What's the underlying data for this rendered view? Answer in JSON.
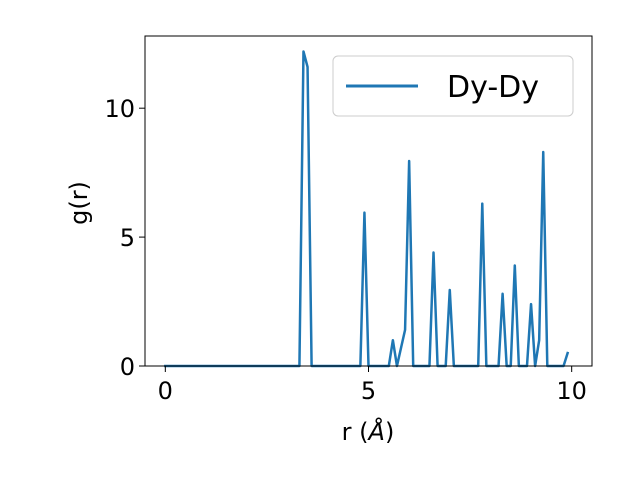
{
  "chart_data": {
    "type": "line",
    "xlabel_prefix": "r (",
    "xlabel_unit": "Å",
    "xlabel_suffix": ")",
    "ylabel": "g(r)",
    "xlim": [
      -0.5,
      10.5
    ],
    "ylim": [
      0,
      12.8
    ],
    "xticks": [
      0,
      5,
      10
    ],
    "yticks": [
      0,
      5,
      10
    ],
    "grid": false,
    "legend_position": "top-right",
    "colors": {
      "series": "#1f77b4"
    },
    "series": [
      {
        "name": "Dy-Dy",
        "x": [
          0.0,
          3.3,
          3.4,
          3.5,
          3.6,
          4.8,
          4.9,
          5.0,
          5.5,
          5.6,
          5.7,
          5.9,
          6.0,
          6.1,
          6.5,
          6.6,
          6.7,
          6.9,
          7.0,
          7.1,
          7.7,
          7.8,
          7.9,
          8.2,
          8.3,
          8.4,
          8.5,
          8.6,
          8.7,
          8.9,
          9.0,
          9.1,
          9.2,
          9.3,
          9.4,
          9.8,
          9.9
        ],
        "y": [
          0.0,
          0.0,
          12.2,
          11.6,
          0.0,
          0.0,
          5.95,
          0.0,
          0.0,
          1.0,
          0.0,
          1.4,
          7.95,
          0.0,
          0.0,
          4.4,
          0.0,
          0.0,
          2.95,
          0.0,
          0.0,
          6.3,
          0.0,
          0.0,
          2.8,
          0.0,
          0.0,
          3.9,
          0.0,
          0.0,
          2.4,
          0.0,
          1.0,
          8.3,
          0.0,
          0.0,
          0.5
        ]
      }
    ]
  }
}
